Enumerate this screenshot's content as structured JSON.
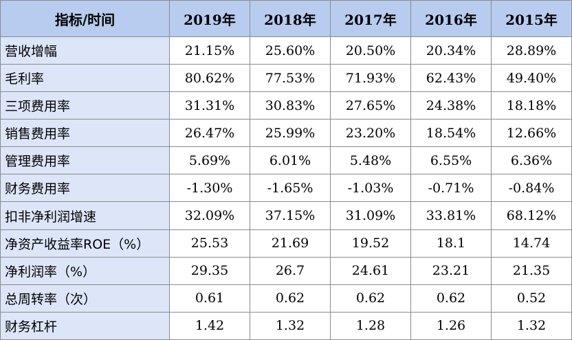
{
  "table": {
    "headers": [
      "指标/时间",
      "2019年",
      "2018年",
      "2017年",
      "2016年",
      "2015年"
    ],
    "rows": [
      {
        "label": "营收增幅",
        "values": [
          "21.15%",
          "25.60%",
          "20.50%",
          "20.34%",
          "28.89%"
        ]
      },
      {
        "label": "毛利率",
        "values": [
          "80.62%",
          "77.53%",
          "71.93%",
          "62.43%",
          "49.40%"
        ]
      },
      {
        "label": "三项费用率",
        "values": [
          "31.31%",
          "30.83%",
          "27.65%",
          "24.38%",
          "18.18%"
        ]
      },
      {
        "label": "销售费用率",
        "values": [
          "26.47%",
          "25.99%",
          "23.20%",
          "18.54%",
          "12.66%"
        ]
      },
      {
        "label": "管理费用率",
        "values": [
          "5.69%",
          "6.01%",
          "5.48%",
          "6.55%",
          "6.36%"
        ]
      },
      {
        "label": "财务费用率",
        "values": [
          "-1.30%",
          "-1.65%",
          "-1.03%",
          "-0.71%",
          "-0.84%"
        ]
      },
      {
        "label": "扣非净利润增速",
        "values": [
          "32.09%",
          "37.15%",
          "31.09%",
          "33.81%",
          "68.12%"
        ]
      },
      {
        "label": "净资产收益率ROE（%）",
        "values": [
          "25.53",
          "21.69",
          "19.52",
          "18.1",
          "14.74"
        ]
      },
      {
        "label": "净利润率（%）",
        "values": [
          "29.35",
          "26.7",
          "24.61",
          "23.21",
          "21.35"
        ]
      },
      {
        "label": "总周转率（次）",
        "values": [
          "0.61",
          "0.62",
          "0.62",
          "0.62",
          "0.52"
        ]
      },
      {
        "label": "财务杠杆",
        "values": [
          "1.42",
          "1.32",
          "1.28",
          "1.26",
          "1.32"
        ]
      }
    ]
  },
  "colors": {
    "header_bg": "#b8ccef",
    "label_bg": "#dce6f8",
    "border": "#8a8a8a"
  }
}
